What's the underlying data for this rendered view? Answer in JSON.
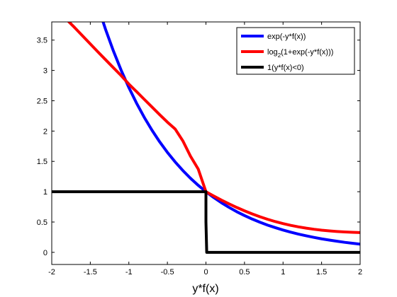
{
  "chart_data": {
    "type": "line",
    "title": "",
    "xlabel": "y*f(x)",
    "ylabel": "",
    "xlim": [
      -2,
      2
    ],
    "ylim": [
      -0.2,
      3.8
    ],
    "xticks": [
      -2,
      -1.5,
      -1,
      -0.5,
      0,
      0.5,
      1,
      1.5,
      2
    ],
    "xtick_labels": [
      "-2",
      "-1.5",
      "-1",
      "-0.5",
      "0",
      "0.5",
      "1",
      "1.5",
      "2"
    ],
    "yticks": [
      0,
      0.5,
      1,
      1.5,
      2,
      2.5,
      3,
      3.5
    ],
    "ytick_labels": [
      "0",
      "0.5",
      "1",
      "1.5",
      "2",
      "2.5",
      "3",
      "3.5"
    ],
    "grid": false,
    "legend_position": "top-right",
    "series": [
      {
        "name": "exp(-y*f(x))",
        "legend_main": "exp(-y*f(x))",
        "legend_sub": "",
        "legend_tail": "",
        "color": "#0000ff",
        "x": [
          -1.4,
          -1.3,
          -1.2,
          -1.1,
          -1.0,
          -0.9,
          -0.8,
          -0.7,
          -0.6,
          -0.5,
          -0.4,
          -0.3,
          -0.2,
          -0.1,
          0.0,
          0.1,
          0.2,
          0.3,
          0.4,
          0.5,
          0.6,
          0.7,
          0.8,
          0.9,
          1.0,
          1.1,
          1.2,
          1.3,
          1.4,
          1.5,
          1.6,
          1.7,
          1.8,
          1.9,
          2.0
        ],
        "y": [
          4.055,
          3.669,
          3.32,
          3.004,
          2.718,
          2.46,
          2.226,
          2.014,
          1.822,
          1.649,
          1.492,
          1.35,
          1.221,
          1.105,
          1.0,
          0.905,
          0.819,
          0.741,
          0.67,
          0.607,
          0.549,
          0.497,
          0.449,
          0.407,
          0.368,
          0.333,
          0.301,
          0.273,
          0.247,
          0.223,
          0.202,
          0.183,
          0.165,
          0.15,
          0.135
        ]
      },
      {
        "name": "log2(1+exp(-y*f(x)))",
        "legend_main": "log",
        "legend_sub": "2",
        "legend_tail": "(1+exp(-y*f(x)))",
        "color": "#ff0000",
        "x": [
          -1.8,
          -1.7,
          -1.6,
          -1.5,
          -1.4,
          -1.3,
          -1.2,
          -1.1,
          -1.0,
          -0.9,
          -0.8,
          -0.7,
          -0.6,
          -0.5,
          -0.4,
          -0.3,
          -0.2,
          -0.1,
          0.0,
          0.1,
          0.2,
          0.3,
          0.4,
          0.5,
          0.6,
          0.7,
          0.8,
          0.9,
          1.0,
          1.1,
          1.2,
          1.3,
          1.4,
          1.5,
          1.6,
          1.7,
          1.8,
          1.9,
          2.0
        ],
        "y": [
          3.83,
          3.703,
          3.57,
          3.437,
          3.305,
          3.174,
          3.044,
          2.915,
          2.775,
          2.65,
          2.523,
          2.397,
          2.27,
          2.147,
          2.035,
          1.839,
          1.584,
          1.373,
          1.0,
          0.93,
          0.862,
          0.799,
          0.74,
          0.685,
          0.634,
          0.587,
          0.545,
          0.507,
          0.474,
          0.445,
          0.42,
          0.399,
          0.381,
          0.366,
          0.354,
          0.344,
          0.336,
          0.33,
          0.326
        ]
      },
      {
        "name": "1(y*f(x)<0)",
        "legend_main": "1(y*f(x)<0)",
        "legend_sub": "",
        "legend_tail": "",
        "color": "#000000",
        "x": [
          -2.0,
          0.0,
          0.0,
          0.01,
          2.0
        ],
        "y": [
          1.0,
          1.0,
          0.5,
          0.0,
          0.0
        ]
      }
    ]
  }
}
